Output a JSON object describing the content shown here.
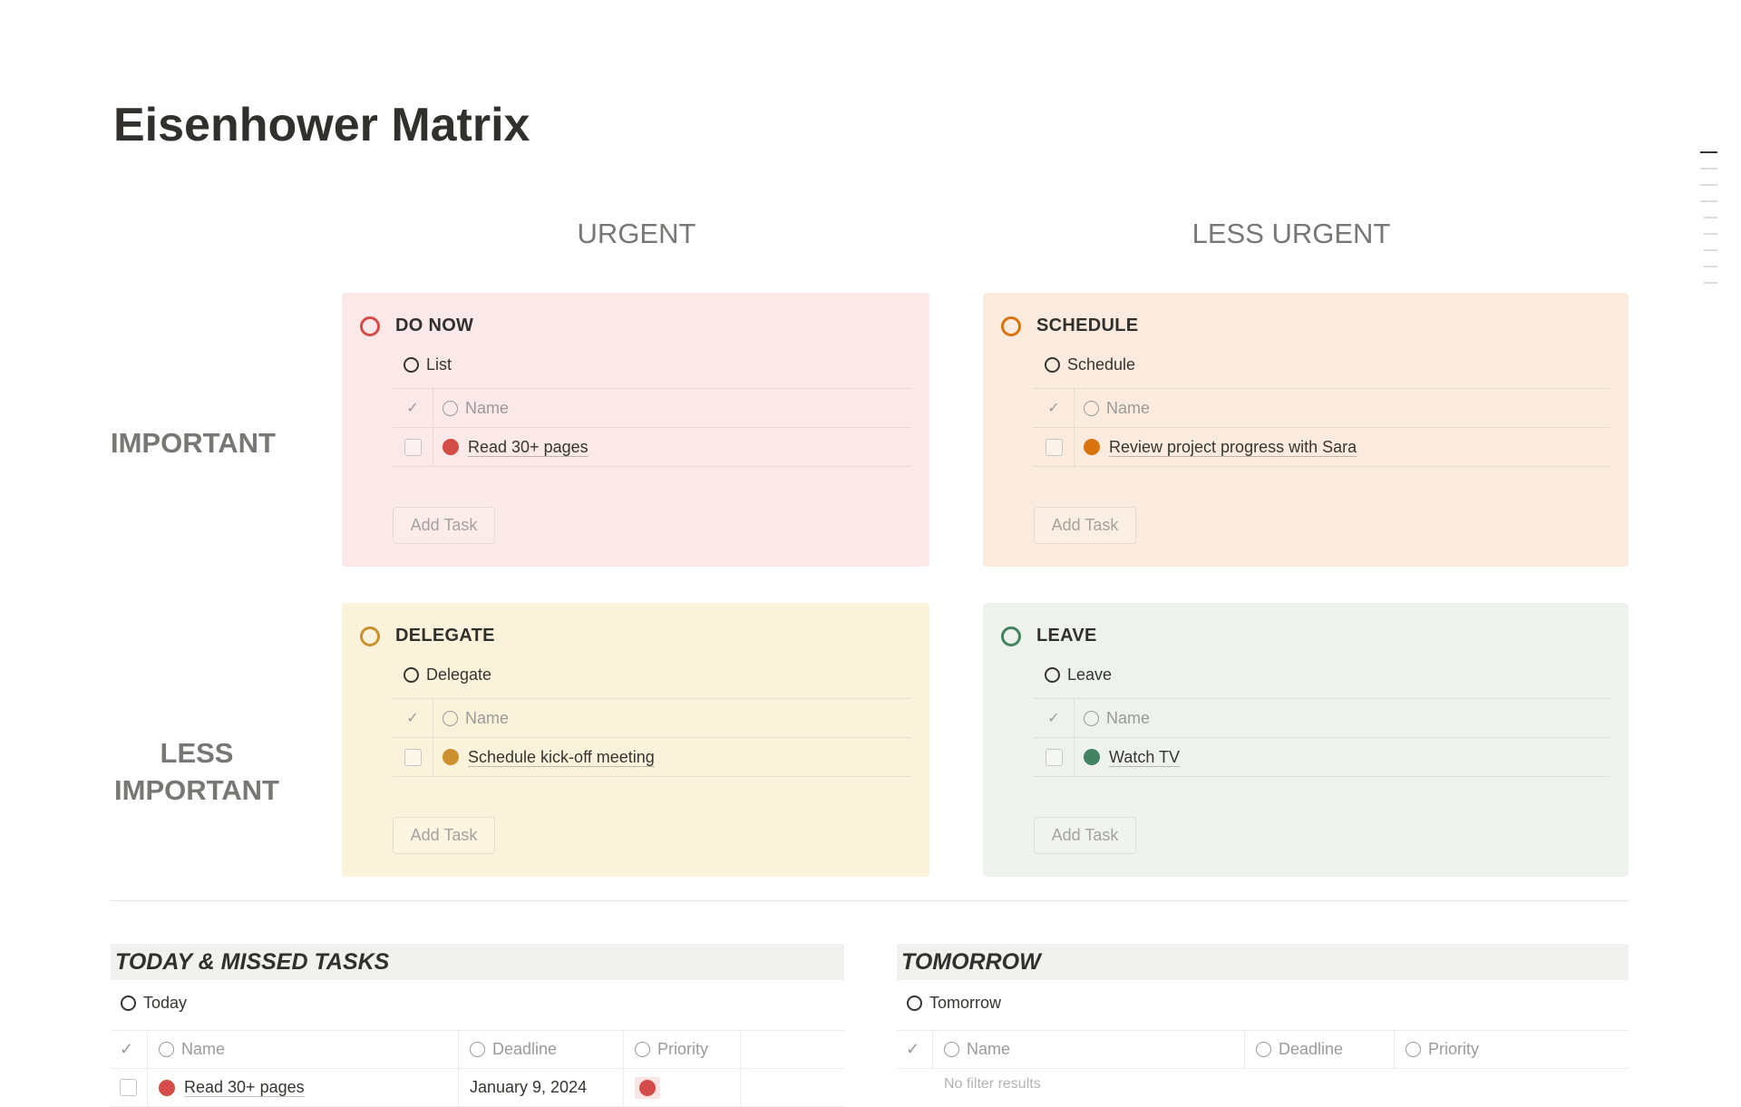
{
  "page": {
    "title": "Eisenhower Matrix"
  },
  "matrix": {
    "columns": [
      "URGENT",
      "LESS URGENT"
    ],
    "rows": [
      "IMPORTANT",
      "LESS IMPORTANT"
    ],
    "quadrants": [
      {
        "title": "DO NOW",
        "view": "List",
        "name_header": "Name",
        "tasks": [
          "Read 30+ pages"
        ],
        "add_label": "Add Task",
        "bg": "#fbe8e8",
        "accent": "#d44c47"
      },
      {
        "title": "SCHEDULE",
        "view": "Schedule",
        "name_header": "Name",
        "tasks": [
          "Review project progress with Sara"
        ],
        "add_label": "Add Task",
        "bg": "#fbebde",
        "accent": "#d9730d"
      },
      {
        "title": "DELEGATE",
        "view": "Delegate",
        "name_header": "Name",
        "tasks": [
          "Schedule kick-off meeting"
        ],
        "add_label": "Add Task",
        "bg": "#fbf2dc",
        "accent": "#cb912f"
      },
      {
        "title": "LEAVE",
        "view": "Leave",
        "name_header": "Name",
        "tasks": [
          "Watch TV"
        ],
        "add_label": "Add Task",
        "bg": "#edf2ec",
        "accent": "#448361"
      }
    ]
  },
  "today": {
    "heading": "TODAY & MISSED TASKS",
    "view": "Today",
    "headers": [
      "Name",
      "Deadline",
      "Priority"
    ],
    "rows": [
      {
        "name": "Read 30+ pages",
        "deadline": "January 9, 2024",
        "priority_color": "#d44c47"
      }
    ]
  },
  "tomorrow": {
    "heading": "TOMORROW",
    "view": "Tomorrow",
    "headers": [
      "Name",
      "Deadline",
      "Priority"
    ],
    "empty": "No filter results"
  }
}
